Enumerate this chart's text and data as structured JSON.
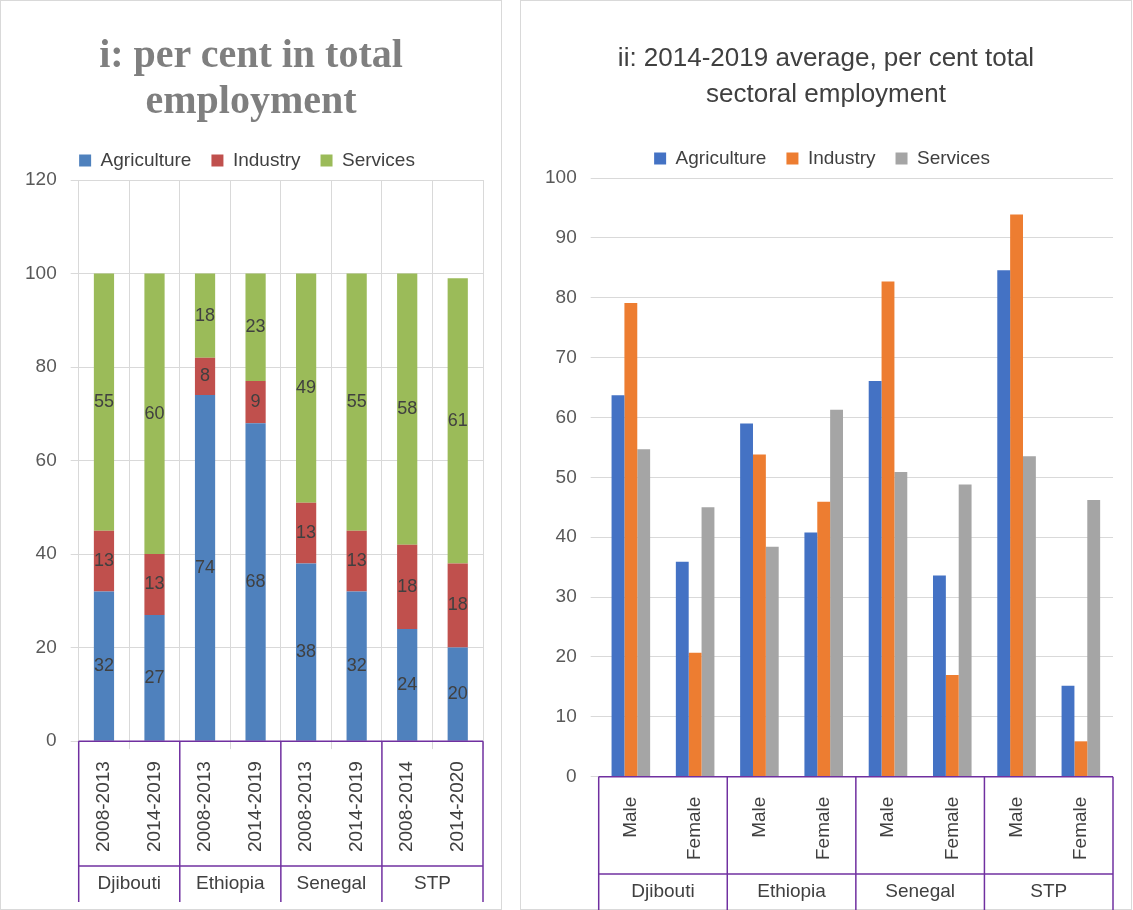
{
  "chart_data": [
    {
      "type": "bar",
      "title": "i: per cent in total employment",
      "categories": [
        "2008-2013",
        "2014-2019",
        "2008-2013",
        "2014-2019",
        "2008-2013",
        "2014-2019",
        "2008-2014",
        "2014-2020"
      ],
      "stacked": true,
      "data_labels": true,
      "series": [
        {
          "name": "Agriculture",
          "color": "#4f81bd",
          "values": [
            32,
            27,
            74,
            68,
            38,
            32,
            24,
            20
          ]
        },
        {
          "name": "Industry",
          "color": "#c0504d",
          "values": [
            13,
            13,
            8,
            9,
            13,
            13,
            18,
            18
          ]
        },
        {
          "name": "Services",
          "color": "#9bbb59",
          "values": [
            55,
            60,
            18,
            23,
            49,
            55,
            58,
            61
          ]
        }
      ],
      "ylim": [
        0,
        120
      ],
      "yticks": [
        0,
        20,
        40,
        60,
        80,
        100,
        120
      ],
      "grid": true,
      "legend": "top",
      "annotations": [
        "Djibouti",
        "Ethiopia",
        "Senegal",
        "STP"
      ]
    },
    {
      "type": "bar",
      "title": "ii: 2014-2019 average, per cent total sectoral employment",
      "categories": [
        "Male",
        "Female",
        "Male",
        "Female",
        "Male",
        "Female",
        "Male",
        "Female"
      ],
      "series": [
        {
          "name": "Agriculture",
          "color": "#4472c4",
          "values": [
            63.7,
            35.9,
            59.0,
            40.8,
            66.1,
            33.6,
            84.6,
            15.2
          ]
        },
        {
          "name": "Industry",
          "color": "#ed7d31",
          "values": [
            79.1,
            20.7,
            53.8,
            45.9,
            82.7,
            17.0,
            93.9,
            5.9
          ]
        },
        {
          "name": "Services",
          "color": "#a5a5a5",
          "values": [
            54.7,
            45.0,
            38.4,
            61.3,
            50.9,
            48.8,
            53.5,
            46.2
          ]
        }
      ],
      "ylim": [
        0,
        100
      ],
      "yticks": [
        0,
        10,
        20,
        30,
        40,
        50,
        60,
        70,
        80,
        90,
        100
      ],
      "grid": "y",
      "legend": "top",
      "annotations": [
        "Djibouti",
        "Ethiopia",
        "Senegal",
        "STP"
      ]
    }
  ]
}
